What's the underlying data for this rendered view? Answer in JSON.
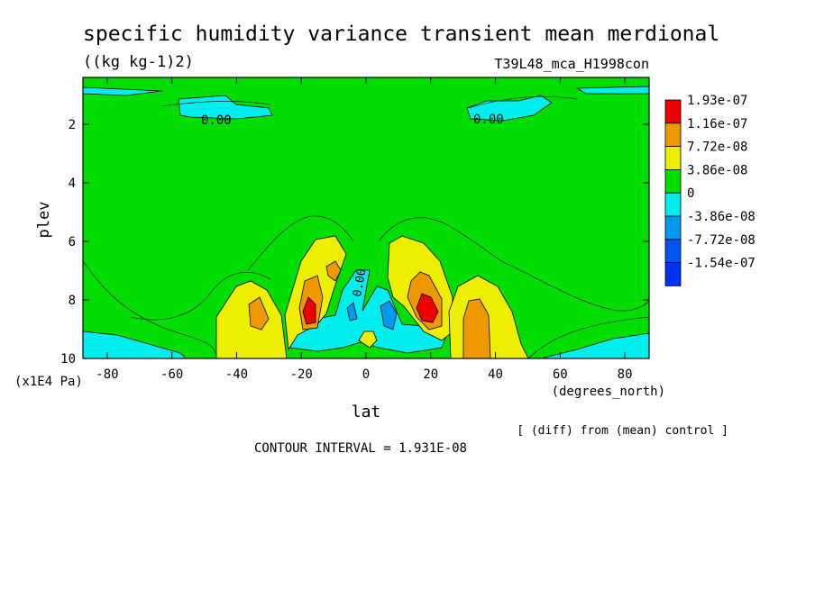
{
  "chart_data": {
    "type": "heatmap",
    "title": "specific humidity variance transient mean merdional",
    "units": "((kg kg-1)2)",
    "run_label": "T39L48_mca_H1998con",
    "xlabel": "lat",
    "x_units": "(degrees_north)",
    "ylabel": "plev",
    "y_units": "(x1E4 Pa)",
    "note": "[ (diff) from (mean) control ]",
    "contour_interval": "CONTOUR INTERVAL = 1.931E-08",
    "x_ticks": [
      "-80",
      "-60",
      "-40",
      "-20",
      "0",
      "20",
      "40",
      "60",
      "80"
    ],
    "x_tick_values": [
      -80,
      -60,
      -40,
      -20,
      0,
      20,
      40,
      60,
      80
    ],
    "y_ticks": [
      "2",
      "4",
      "6",
      "8",
      "10"
    ],
    "y_tick_values": [
      2,
      4,
      6,
      8,
      10
    ],
    "xlim": [
      -87.5,
      87.5
    ],
    "ylim": [
      10,
      0.4
    ],
    "contour_labels": [
      "0.00",
      "0.00",
      "0.00"
    ],
    "colorbar": {
      "labels": [
        "1.93e-07",
        "1.16e-07",
        "7.72e-08",
        "3.86e-08",
        "0",
        "-3.86e-08",
        "-7.72e-08",
        "-1.54e-07"
      ],
      "colors": [
        "#ee0000",
        "#ee9900",
        "#eeee00",
        "#00dd00",
        "#00eeee",
        "#0099ee",
        "#0055ee",
        "#0033ee"
      ]
    },
    "regions": [
      {
        "label": "red maximum",
        "value_range": ">1.16e-07",
        "lat": -18,
        "plev": 8.3
      },
      {
        "label": "red maximum",
        "value_range": ">1.16e-07",
        "lat": 18,
        "plev": 8.3
      },
      {
        "label": "orange band",
        "value_range": "7.72e-08 to 1.16e-07",
        "lat": 32,
        "plev": 8.6
      },
      {
        "label": "orange band",
        "value_range": "7.72e-08 to 1.16e-07",
        "lat": -12,
        "plev": 7.0
      },
      {
        "label": "blue minimum",
        "value_range": "-7.72e-08 to -3.86e-08",
        "lat": 8,
        "plev": 8.5
      },
      {
        "label": "cyan negative",
        "value_range": "-3.86e-08 to 0",
        "lat": -30,
        "plev": 1.2
      },
      {
        "label": "cyan negative",
        "value_range": "-3.86e-08 to 0",
        "lat": 55,
        "plev": 1.2
      }
    ]
  }
}
